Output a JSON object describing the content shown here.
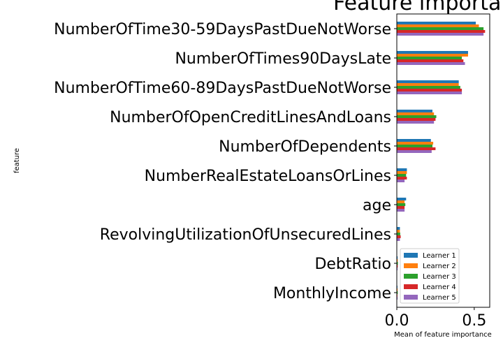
{
  "chart_data": {
    "type": "bar",
    "orientation": "horizontal",
    "title": "Feature importa",
    "xlabel": "Mean of feature importance",
    "ylabel": "feature",
    "xlim": [
      0,
      0.6
    ],
    "xticks": [
      "0.0",
      "0.5"
    ],
    "xtick_values": [
      0,
      0.5
    ],
    "grid": false,
    "legend_position": "bottom-right",
    "categories": [
      "NumberOfTime30-59DaysPastDueNotWorse",
      "NumberOfTimes90DaysLate",
      "NumberOfTime60-89DaysPastDueNotWorse",
      "NumberOfOpenCreditLinesAndLoans",
      "NumberOfDependents",
      "NumberRealEstateLoansOrLines",
      "age",
      "RevolvingUtilizationOfUnsecuredLines",
      "DebtRatio",
      "MonthlyIncome"
    ],
    "series": [
      {
        "name": "Learner 1",
        "color": "#1f77b4",
        "values": [
          0.51,
          0.46,
          0.4,
          0.23,
          0.22,
          0.065,
          0.06,
          0.02,
          0.005,
          0.004
        ]
      },
      {
        "name": "Learner 2",
        "color": "#ff7f0e",
        "values": [
          0.53,
          0.46,
          0.4,
          0.24,
          0.235,
          0.065,
          0.05,
          0.02,
          0.006,
          0.005
        ]
      },
      {
        "name": "Learner 3",
        "color": "#2ca02c",
        "values": [
          0.56,
          0.42,
          0.41,
          0.255,
          0.23,
          0.06,
          0.055,
          0.022,
          0.007,
          0.006
        ]
      },
      {
        "name": "Learner 4",
        "color": "#d62728",
        "values": [
          0.57,
          0.43,
          0.42,
          0.25,
          0.25,
          0.065,
          0.05,
          0.025,
          0.006,
          0.004
        ]
      },
      {
        "name": "Learner 5",
        "color": "#9467bd",
        "values": [
          0.56,
          0.44,
          0.42,
          0.24,
          0.225,
          0.05,
          0.05,
          0.02,
          0.005,
          0.005
        ]
      }
    ]
  }
}
